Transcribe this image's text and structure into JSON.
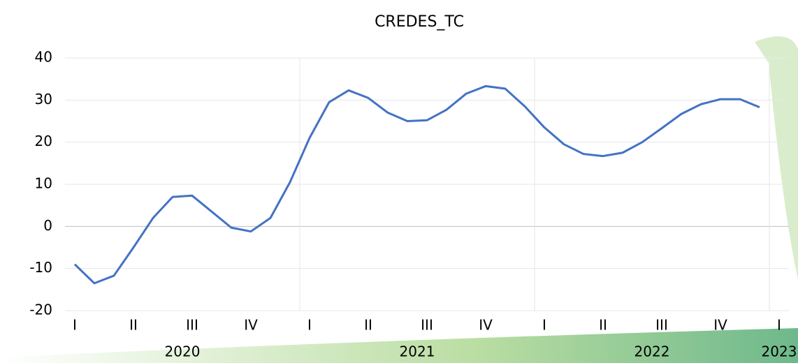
{
  "chart_data": {
    "type": "line",
    "title": "CREDES_TC",
    "categories": [
      "I",
      null,
      null,
      "II",
      null,
      null,
      "III",
      null,
      null,
      "IV",
      null,
      null,
      "I",
      null,
      null,
      "II",
      null,
      null,
      "III",
      null,
      null,
      "IV",
      null,
      null,
      "I",
      null,
      null,
      "II",
      null,
      null,
      "III",
      null,
      null,
      "IV",
      null,
      null,
      "I"
    ],
    "years": [
      "2020",
      "2021",
      "2022",
      "2023"
    ],
    "series": [
      {
        "name": "CREDES_TC",
        "color": "#4472c4",
        "values": [
          -9,
          -13.5,
          -11.7,
          -5,
          2,
          7,
          7.3,
          3.5,
          -0.3,
          -1.2,
          2,
          10.5,
          21,
          29.5,
          32.3,
          30.5,
          27,
          25,
          25.2,
          27.7,
          31.5,
          33.3,
          32.7,
          28.5,
          23.5,
          19.5,
          17.2,
          16.7,
          17.5,
          20,
          23.3,
          26.7,
          29,
          30.2,
          30.2,
          28.3,
          null
        ]
      }
    ],
    "ylim": [
      -20,
      40
    ],
    "yticks": [
      -20,
      -10,
      0,
      10,
      20,
      30,
      40
    ],
    "grid": true
  }
}
